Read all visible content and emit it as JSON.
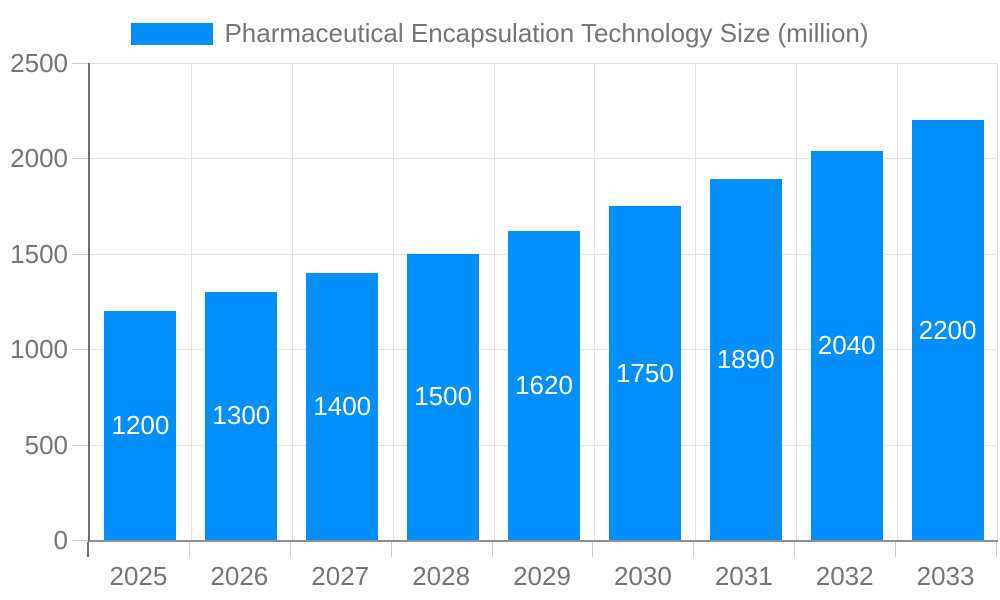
{
  "chart_data": {
    "type": "bar",
    "title": "Pharmaceutical Encapsulation Technology Size (million)",
    "categories": [
      "2025",
      "2026",
      "2027",
      "2028",
      "2029",
      "2030",
      "2031",
      "2032",
      "2033"
    ],
    "values": [
      1200,
      1300,
      1400,
      1500,
      1620,
      1750,
      1890,
      2040,
      2200
    ],
    "series_name": "Pharmaceutical Encapsulation Technology Size (million)",
    "xlabel": "",
    "ylabel": "",
    "ylim": [
      0,
      2500
    ],
    "yticks": [
      0,
      500,
      1000,
      1500,
      2000,
      2500
    ],
    "grid": true,
    "legend_position": "top",
    "colors": {
      "bar": "#008FFB",
      "bar_label": "#ffffff",
      "axis_text": "#757575",
      "axis_line": "#6e6e6e",
      "baseline": "#8f8f8f",
      "gridline": "#e2e2e2",
      "tick": "#cccccc",
      "background": "#ffffff"
    }
  }
}
